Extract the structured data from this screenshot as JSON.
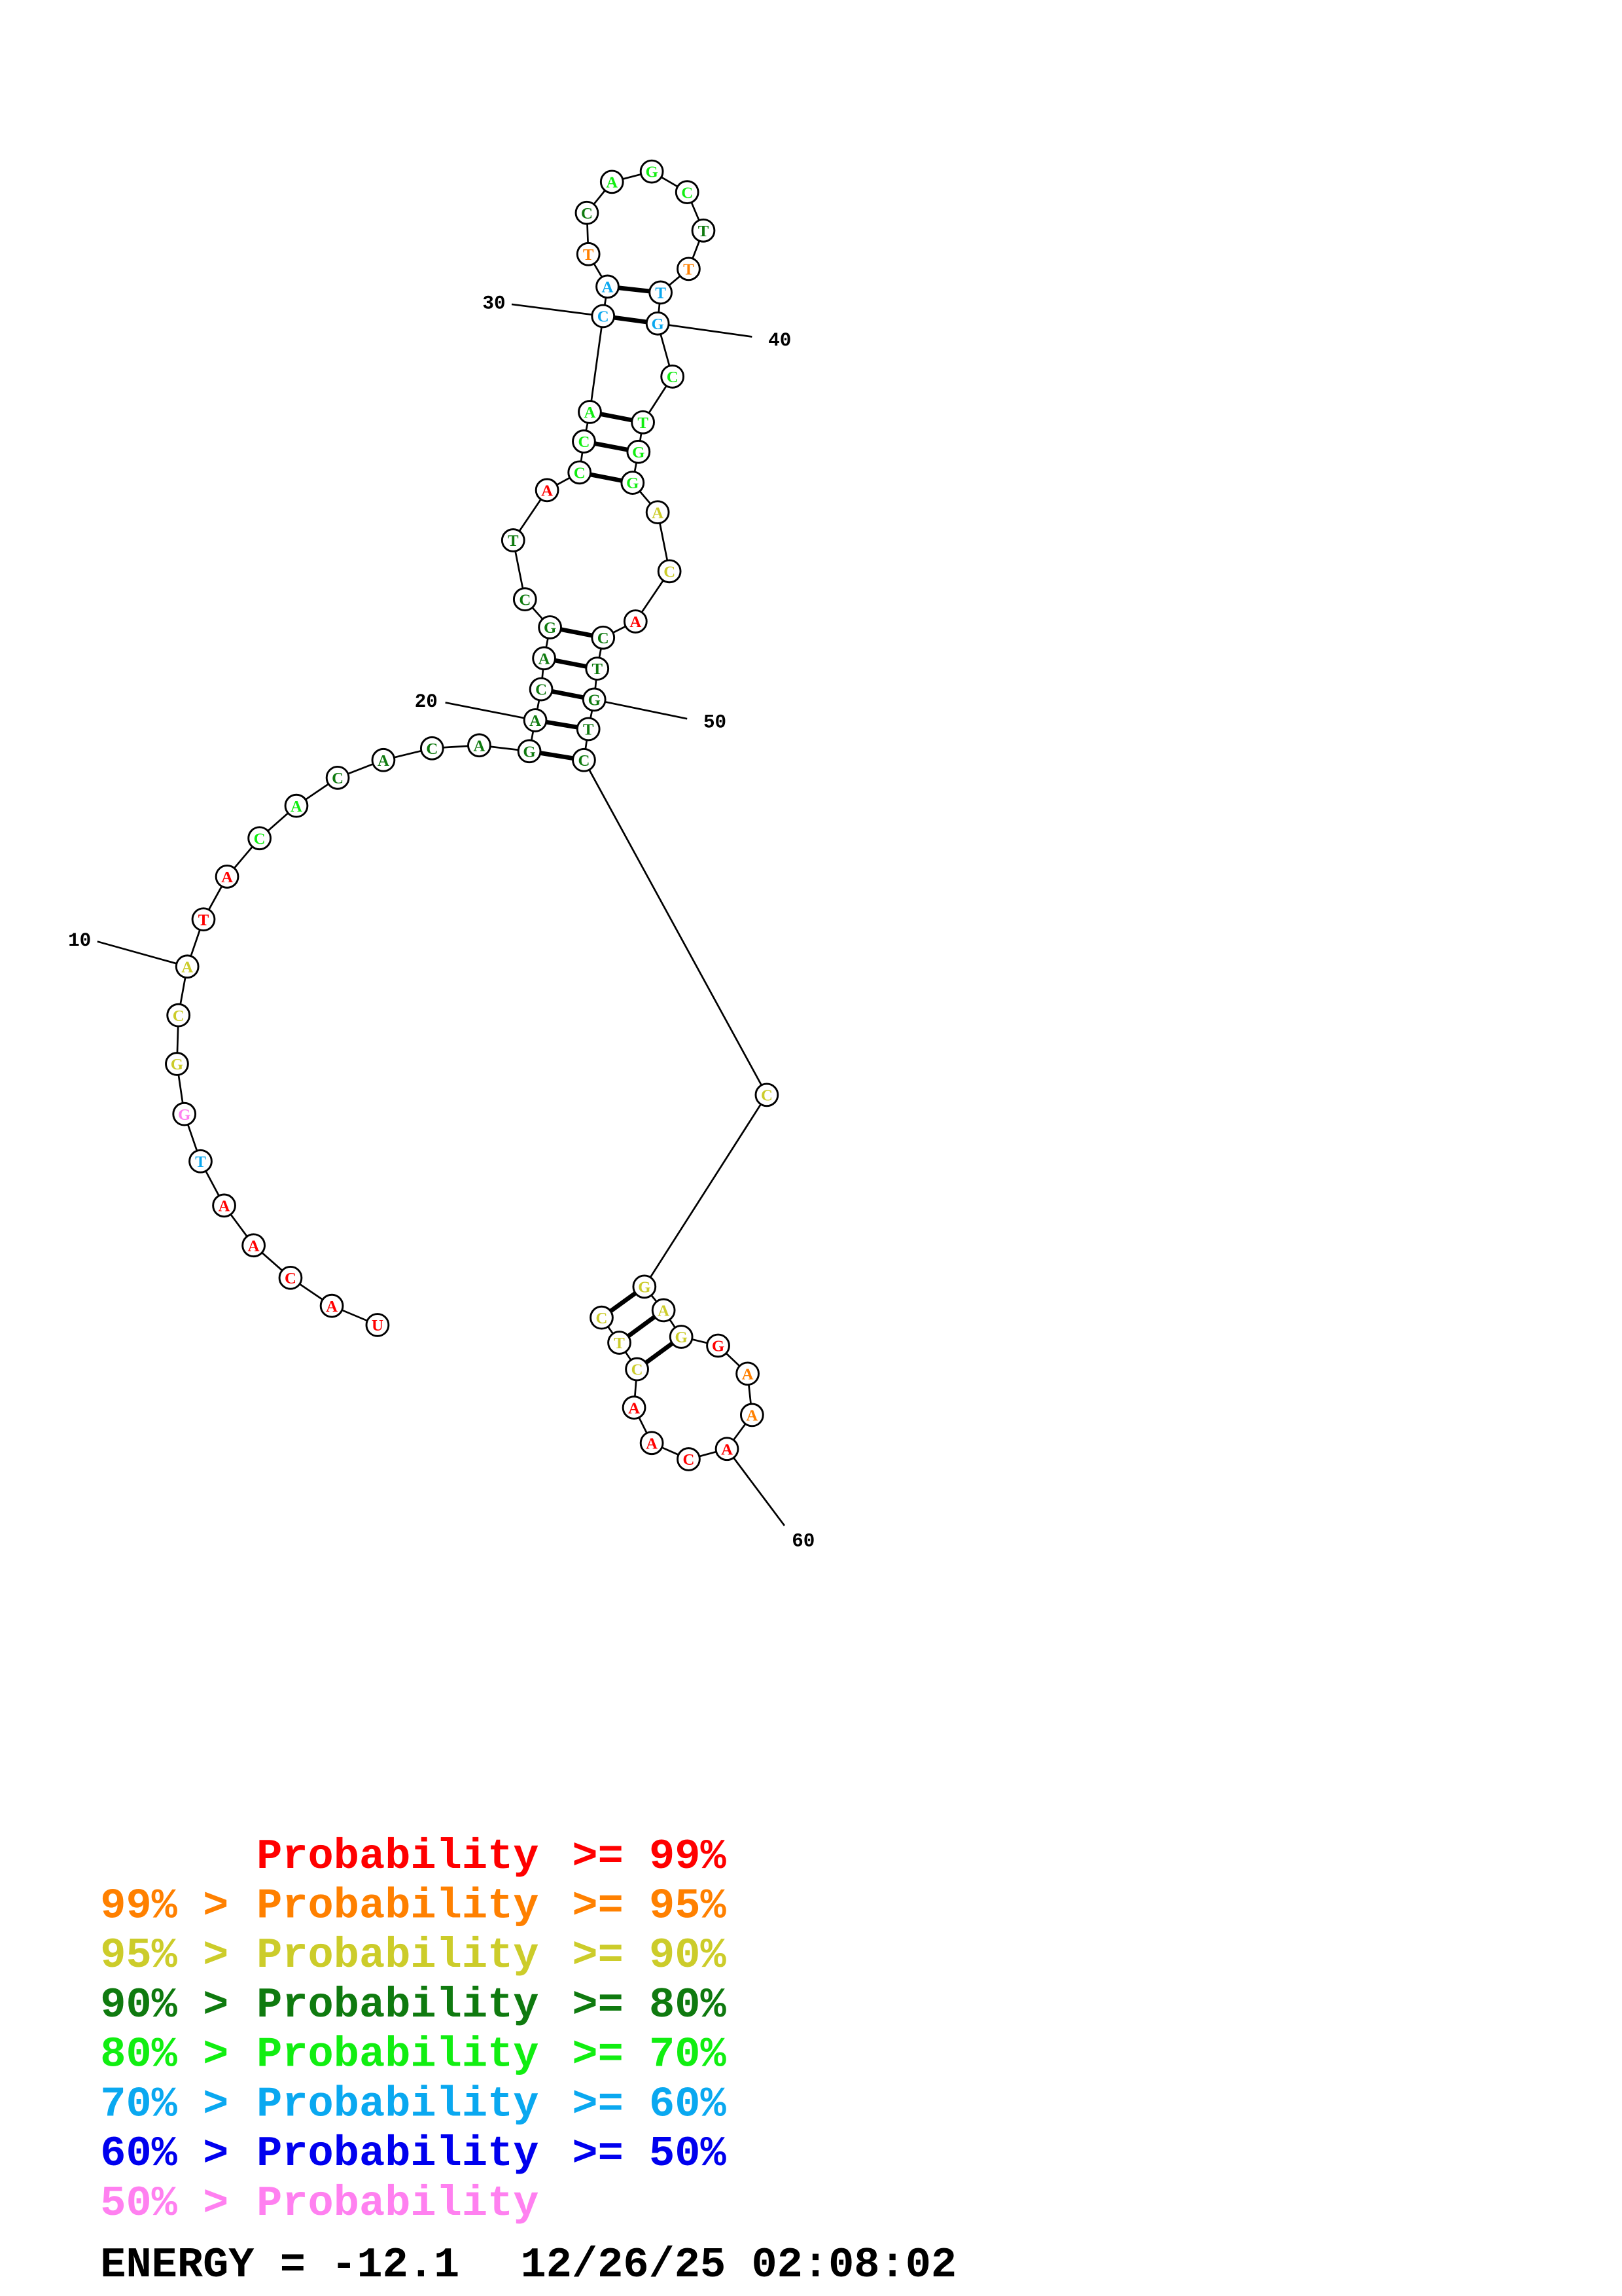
{
  "structure": {
    "sequence": "UACAATGGCATACACACAGACAGCTACCACATCAGCTTTGCTGGACACTGTCCGAGGAAACAACTC",
    "probability_level": [
      0,
      0,
      0,
      0,
      0,
      5,
      7,
      2,
      2,
      2,
      0,
      0,
      4,
      4,
      3,
      3,
      3,
      3,
      3,
      3,
      3,
      3,
      3,
      3,
      3,
      0,
      4,
      4,
      4,
      5,
      5,
      1,
      3,
      4,
      4,
      4,
      3,
      1,
      5,
      5,
      4,
      4,
      4,
      4,
      2,
      2,
      0,
      3,
      3,
      3,
      3,
      3,
      2,
      2,
      2,
      2,
      0,
      1,
      1,
      0,
      0,
      0,
      0,
      2,
      2,
      2
    ],
    "pairs": [
      [
        19,
        52
      ],
      [
        20,
        51
      ],
      [
        21,
        50
      ],
      [
        22,
        49
      ],
      [
        23,
        48
      ],
      [
        27,
        44
      ],
      [
        28,
        43
      ],
      [
        29,
        42
      ],
      [
        30,
        40
      ],
      [
        31,
        39
      ],
      [
        54,
        66
      ],
      [
        55,
        65
      ],
      [
        56,
        64
      ]
    ],
    "position_labels": [
      {
        "n": 10,
        "text": "10"
      },
      {
        "n": 20,
        "text": "20"
      },
      {
        "n": 30,
        "text": "30"
      },
      {
        "n": 40,
        "text": "40"
      },
      {
        "n": 50,
        "text": "50"
      },
      {
        "n": 60,
        "text": "60"
      }
    ]
  },
  "legend": [
    {
      "prefix": "",
      "label": "Probability",
      "suffix": ">= 99%",
      "color": "#ff0000"
    },
    {
      "prefix": "99% >",
      "label": "Probability",
      "suffix": ">= 95%",
      "color": "#ff8000"
    },
    {
      "prefix": "95% >",
      "label": "Probability",
      "suffix": ">= 90%",
      "color": "#cccc2a"
    },
    {
      "prefix": "90% >",
      "label": "Probability",
      "suffix": ">= 80%",
      "color": "#0f7a0f"
    },
    {
      "prefix": "80% >",
      "label": "Probability",
      "suffix": ">= 70%",
      "color": "#11ee11"
    },
    {
      "prefix": "70% >",
      "label": "Probability",
      "suffix": ">= 60%",
      "color": "#0aa8f0"
    },
    {
      "prefix": "60% >",
      "label": "Probability",
      "suffix": ">= 50%",
      "color": "#0000ee"
    },
    {
      "prefix": "50% >",
      "label": "Probability",
      "suffix": "",
      "color": "#ff80f0"
    }
  ],
  "footer": {
    "energy": "ENERGY = -12.1",
    "timestamp": "12/26/25 02:08:02"
  }
}
